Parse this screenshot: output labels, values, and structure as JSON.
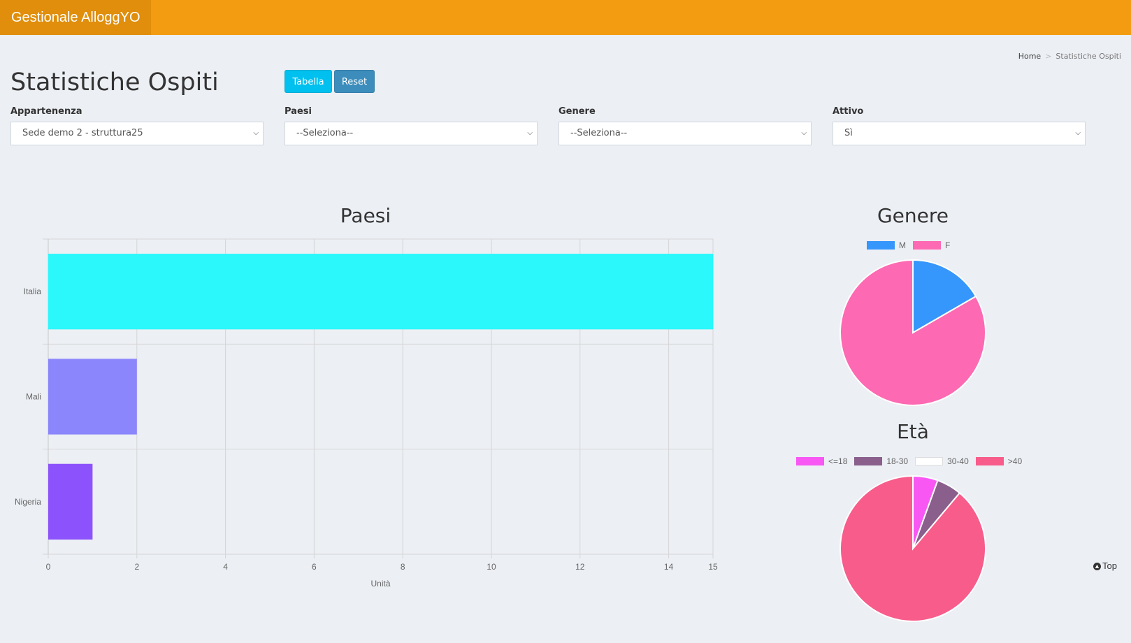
{
  "app": {
    "title": "Gestionale AlloggYO"
  },
  "breadcrumb": {
    "home": "Home",
    "current": "Statistiche Ospiti"
  },
  "page": {
    "title": "Statistiche Ospiti"
  },
  "buttons": {
    "tabella": "Tabella",
    "reset": "Reset"
  },
  "filters": [
    {
      "label": "Appartenenza",
      "value": "Sede demo 2 - struttura25"
    },
    {
      "label": "Paesi",
      "value": "--Seleziona--"
    },
    {
      "label": "Genere",
      "value": "--Seleziona--"
    },
    {
      "label": "Attivo",
      "value": "Sì"
    }
  ],
  "top_link": "Top",
  "colors": {
    "header": "#f39c12",
    "brand": "#e08e0b",
    "tabella": "#00c0ef",
    "reset": "#3c8dbc"
  },
  "chart_data": [
    {
      "type": "bar",
      "orientation": "horizontal",
      "title": "Paesi",
      "categories": [
        "Italia",
        "Mali",
        "Nigeria"
      ],
      "values": [
        15,
        2,
        1
      ],
      "colors": [
        "#2bf8fb",
        "#8b86fc",
        "#8c52fb"
      ],
      "xlabel": "Unità",
      "ylabel": "",
      "xlim": [
        0,
        15
      ],
      "xticks": [
        0,
        2,
        4,
        6,
        8,
        10,
        12,
        14,
        15
      ],
      "grid": true
    },
    {
      "type": "pie",
      "title": "Genere",
      "labels": [
        "M",
        "F"
      ],
      "values": [
        3,
        15
      ],
      "colors": [
        "#3596fb",
        "#fd69b2"
      ],
      "legend": "top"
    },
    {
      "type": "pie",
      "title": "Età",
      "labels": [
        "<=18",
        "18-30",
        "30-40",
        ">40"
      ],
      "values": [
        1,
        1,
        0,
        16
      ],
      "colors": [
        "#f857f4",
        "#8a5f8c",
        "#ffffff",
        "#f85c8a"
      ],
      "legend": "top"
    }
  ]
}
